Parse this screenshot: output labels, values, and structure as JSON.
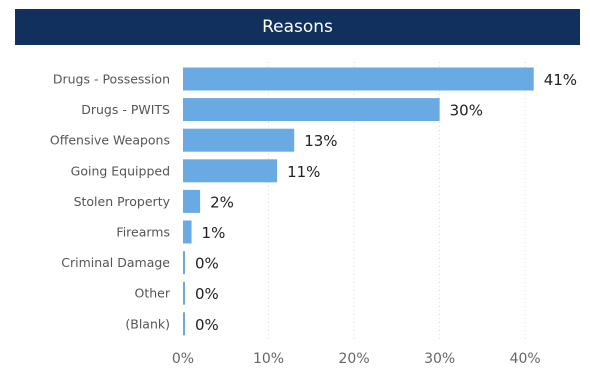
{
  "chart_data": {
    "type": "bar",
    "orientation": "horizontal",
    "title": "Reasons",
    "categories": [
      "Drugs - Possession",
      "Drugs - PWITS",
      "Offensive Weapons",
      "Going Equipped",
      "Stolen Property",
      "Firearms",
      "Criminal Damage",
      "Other",
      "(Blank)"
    ],
    "values": [
      41,
      30,
      13,
      11,
      2,
      1,
      0,
      0,
      0
    ],
    "value_labels": [
      "41%",
      "30%",
      "13%",
      "11%",
      "2%",
      "1%",
      "0%",
      "0%",
      "0%"
    ],
    "x_ticks": [
      "0%",
      "10%",
      "20%",
      "30%",
      "40%"
    ],
    "x_tick_values": [
      0,
      10,
      20,
      30,
      40
    ],
    "xlim": [
      0,
      41.5
    ],
    "xlabel": "",
    "ylabel": "",
    "grid": "vertical dotted",
    "colors": {
      "bar": "#6aaae2",
      "title_background": "#11305e",
      "title_text": "#ffffff"
    }
  }
}
